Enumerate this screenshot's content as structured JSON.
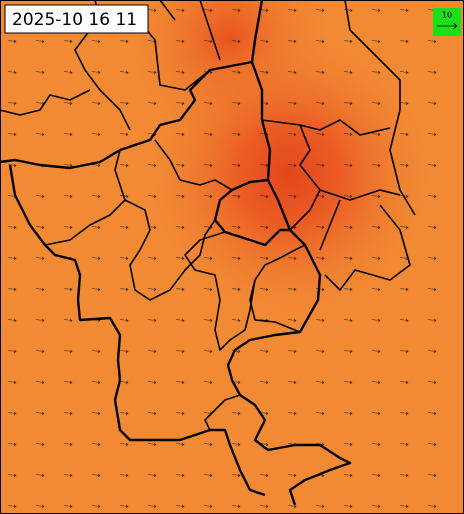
{
  "map": {
    "timestamp": "2025-10 16 11",
    "reference_arrow": {
      "label": "10"
    }
  }
}
